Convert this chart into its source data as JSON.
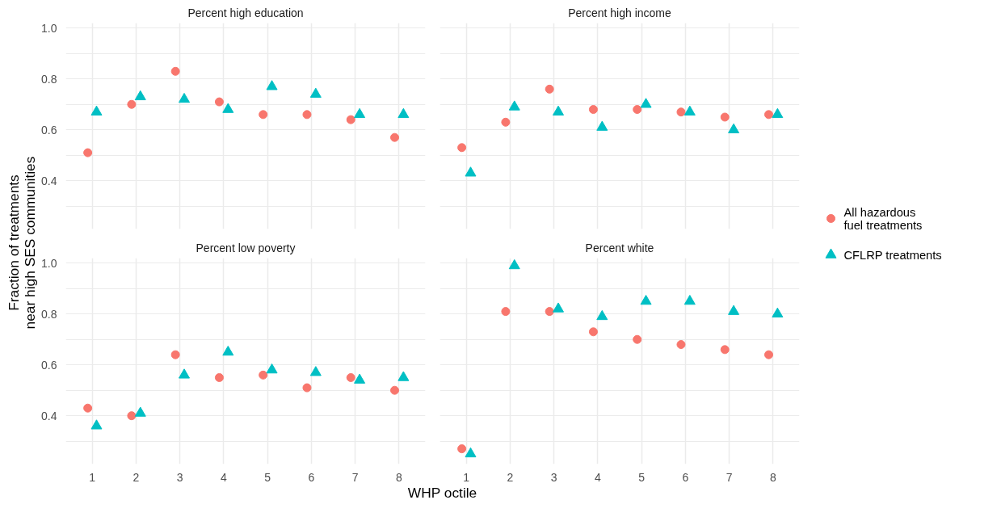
{
  "chart_data": [
    {
      "type": "scatter",
      "title": "Percent high education",
      "ylabel": "Fraction of treatments near high SES communities",
      "categories": [
        "1",
        "2",
        "3",
        "4",
        "5",
        "6",
        "7",
        "8"
      ],
      "ylim": [
        0.21,
        1.02
      ],
      "yticks": [
        {
          "value": 0.3,
          "label": null
        },
        {
          "value": 0.4,
          "label": "0.4"
        },
        {
          "value": 0.5,
          "label": null
        },
        {
          "value": 0.6,
          "label": "0.6"
        },
        {
          "value": 0.7,
          "label": null
        },
        {
          "value": 0.8,
          "label": "0.8"
        },
        {
          "value": 0.9,
          "label": null
        },
        {
          "value": 1.0,
          "label": "1.0"
        }
      ],
      "grid": true,
      "tick_labels": "y",
      "legend": "right",
      "series": [
        {
          "name": "All hazardous fuel treatments",
          "color": "#f8766d",
          "marker": "circle",
          "values": [
            0.51,
            0.7,
            0.83,
            0.71,
            0.66,
            0.66,
            0.64,
            0.57
          ]
        },
        {
          "name": "CFLRP treatments",
          "color": "#00bfc4",
          "marker": "triangle",
          "values": [
            0.67,
            0.73,
            0.72,
            0.68,
            0.77,
            0.74,
            0.66,
            0.66
          ]
        }
      ]
    },
    {
      "type": "scatter",
      "title": "Percent high income",
      "categories": [
        "1",
        "2",
        "3",
        "4",
        "5",
        "6",
        "7",
        "8"
      ],
      "ylim": [
        0.21,
        1.02
      ],
      "yticks": [
        {
          "value": 0.3,
          "label": null
        },
        {
          "value": 0.4,
          "label": "0.4"
        },
        {
          "value": 0.5,
          "label": null
        },
        {
          "value": 0.6,
          "label": "0.6"
        },
        {
          "value": 0.7,
          "label": null
        },
        {
          "value": 0.8,
          "label": "0.8"
        },
        {
          "value": 0.9,
          "label": null
        },
        {
          "value": 1.0,
          "label": "1.0"
        }
      ],
      "grid": true,
      "tick_labels": false,
      "series": [
        {
          "color": "#f8766d",
          "marker": "circle",
          "values": [
            0.53,
            0.63,
            0.76,
            0.68,
            0.68,
            0.67,
            0.65,
            0.66
          ]
        },
        {
          "color": "#00bfc4",
          "marker": "triangle",
          "values": [
            0.43,
            0.69,
            0.67,
            0.61,
            0.7,
            0.67,
            0.6,
            0.66
          ]
        }
      ]
    },
    {
      "type": "scatter",
      "title": "Percent low poverty",
      "xlabel": "WHP octile",
      "categories": [
        "1",
        "2",
        "3",
        "4",
        "5",
        "6",
        "7",
        "8"
      ],
      "ylim": [
        0.21,
        1.02
      ],
      "yticks": [
        {
          "value": 0.3,
          "label": null
        },
        {
          "value": 0.4,
          "label": "0.4"
        },
        {
          "value": 0.5,
          "label": null
        },
        {
          "value": 0.6,
          "label": "0.6"
        },
        {
          "value": 0.7,
          "label": null
        },
        {
          "value": 0.8,
          "label": "0.8"
        },
        {
          "value": 0.9,
          "label": null
        },
        {
          "value": 1.0,
          "label": "1.0"
        }
      ],
      "grid": true,
      "series": [
        {
          "color": "#f8766d",
          "marker": "circle",
          "values": [
            0.43,
            0.4,
            0.64,
            0.55,
            0.56,
            0.51,
            0.55,
            0.5
          ]
        },
        {
          "color": "#00bfc4",
          "marker": "triangle",
          "values": [
            0.36,
            0.41,
            0.56,
            0.65,
            0.58,
            0.57,
            0.54,
            0.55
          ]
        }
      ]
    },
    {
      "type": "scatter",
      "title": "Percent white",
      "categories": [
        "1",
        "2",
        "3",
        "4",
        "5",
        "6",
        "7",
        "8"
      ],
      "ylim": [
        0.21,
        1.02
      ],
      "yticks": [
        {
          "value": 0.3,
          "label": null
        },
        {
          "value": 0.4,
          "label": "0.4"
        },
        {
          "value": 0.5,
          "label": null
        },
        {
          "value": 0.6,
          "label": "0.6"
        },
        {
          "value": 0.7,
          "label": null
        },
        {
          "value": 0.8,
          "label": "0.8"
        },
        {
          "value": 0.9,
          "label": null
        },
        {
          "value": 1.0,
          "label": "1.0"
        }
      ],
      "grid": true,
      "tick_labels": "x",
      "series": [
        {
          "color": "#f8766d",
          "marker": "circle",
          "values": [
            0.27,
            0.81,
            0.81,
            0.73,
            0.7,
            0.68,
            0.66,
            0.64
          ]
        },
        {
          "color": "#00bfc4",
          "marker": "triangle",
          "values": [
            0.25,
            0.99,
            0.82,
            0.79,
            0.85,
            0.85,
            0.81,
            0.8
          ]
        }
      ]
    }
  ]
}
